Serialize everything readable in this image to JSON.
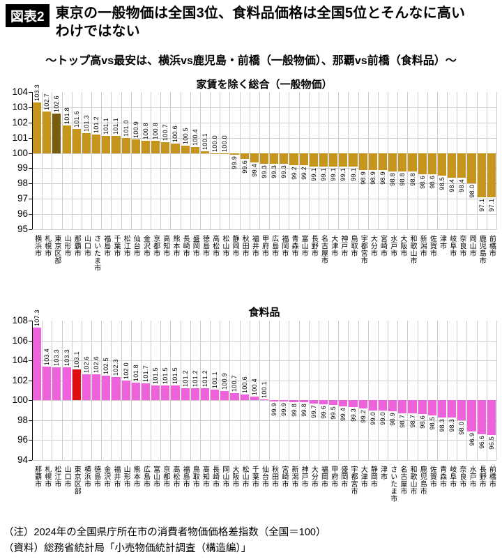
{
  "header": {
    "badge": "図表2",
    "title_line1": "東京の一般物価は全国3位、食料品価格は全国5位とそんなに高い",
    "title_line2": "わけではない",
    "subtitle": "〜トップ高vs最安は、横浜vs鹿児島・前橋（一般物価）、那覇vs前橋（食料品）〜"
  },
  "chart_data": [
    {
      "type": "bar",
      "title": "家賃を除く総合（一般物価）",
      "baseline": 100,
      "ylim": [
        95,
        104
      ],
      "ytick_step": 1,
      "grid": true,
      "legend": "none",
      "bar_color": "#C6951B",
      "highlight_color": "#7A5C10",
      "highlight_index": 2,
      "categories": [
        "横浜市",
        "札幌市",
        "東京区部",
        "山形市",
        "那覇市",
        "山口市",
        "さいたま市",
        "福島市",
        "千葉市",
        "松江市",
        "仙台市",
        "金沢市",
        "京都市",
        "高知市",
        "熊本市",
        "長崎市",
        "盛岡市",
        "徳島市",
        "高松市",
        "松山市",
        "静岡市",
        "秋田市",
        "福井市",
        "甲府市",
        "広島市",
        "福岡市",
        "青森市",
        "富山市",
        "長野市",
        "名古屋市",
        "大津市",
        "神戸市",
        "鳥取市",
        "宇都宮市",
        "大分市",
        "宮崎市",
        "水戸市",
        "大阪市",
        "和歌山市",
        "新潟市",
        "佐賀市",
        "津市",
        "岐阜市",
        "奈良市",
        "岡山市",
        "鹿児島市",
        "前橋市"
      ],
      "values": [
        103.3,
        102.7,
        102.6,
        101.8,
        101.6,
        101.3,
        101.2,
        101.1,
        101.1,
        101.0,
        100.9,
        100.8,
        100.8,
        100.7,
        100.6,
        100.5,
        100.4,
        100.1,
        100.0,
        100.0,
        99.9,
        99.6,
        99.4,
        99.3,
        99.3,
        99.3,
        99.2,
        99.2,
        99.1,
        99.1,
        99.1,
        99.1,
        99.1,
        98.9,
        98.9,
        98.9,
        98.8,
        98.8,
        98.8,
        98.6,
        98.6,
        98.5,
        98.4,
        98.4,
        98.0,
        97.1,
        97.1
      ]
    },
    {
      "type": "bar",
      "title": "食料品",
      "baseline": 100,
      "ylim": [
        94,
        108
      ],
      "ytick_step": 2,
      "grid": true,
      "legend": "none",
      "bar_color": "#EE63DC",
      "highlight_color": "#DC1010",
      "highlight_index": 4,
      "categories": [
        "那覇市",
        "札幌市",
        "松江市",
        "山口市",
        "東京区部",
        "横浜市",
        "徳島市",
        "金沢市",
        "福井市",
        "山形市",
        "熊本市",
        "広島市",
        "富山市",
        "京都市",
        "高松市",
        "福島市",
        "鳥取市",
        "高知市",
        "長崎市",
        "岡山市",
        "大阪市",
        "松山市",
        "千葉市",
        "仙台市",
        "秋田市",
        "宮崎市",
        "新潟市",
        "神戸市",
        "大分市",
        "福岡市",
        "甲府市",
        "盛岡市",
        "宇都宮市",
        "大津市",
        "静岡市",
        "津市",
        "さいたま市",
        "名古屋市",
        "和歌山市",
        "鹿児島市",
        "佐賀市",
        "青森市",
        "岐阜市",
        "奈良市",
        "水戸市",
        "長野市",
        "前橋市"
      ],
      "values": [
        107.3,
        103.4,
        103.3,
        103.3,
        103.1,
        102.6,
        102.6,
        102.5,
        102.3,
        102.0,
        101.8,
        101.7,
        101.5,
        101.5,
        101.5,
        101.2,
        101.2,
        101.2,
        101.1,
        100.9,
        100.7,
        100.6,
        100.4,
        100.1,
        99.9,
        99.9,
        99.8,
        99.8,
        99.7,
        99.6,
        99.5,
        99.4,
        99.3,
        99.2,
        99.0,
        99.0,
        98.9,
        98.7,
        98.7,
        98.6,
        98.5,
        98.3,
        98.3,
        98.0,
        96.9,
        96.6,
        96.5
      ]
    }
  ],
  "footer": {
    "note": "（注）2024年の全国県庁所在市の消費者物価価格差指数（全国＝100）",
    "source": "（資料）総務省統計局「小売物価統計調査（構造編）」"
  }
}
